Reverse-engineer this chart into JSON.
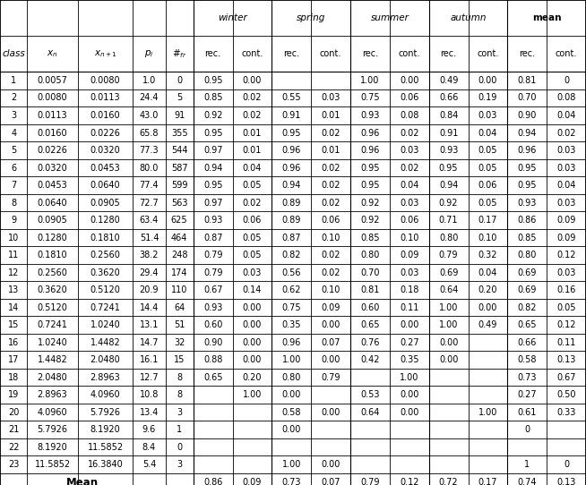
{
  "rows": [
    [
      "1",
      "0.0057",
      "0.0080",
      "1.0",
      "0",
      "0.95",
      "0.00",
      "",
      "",
      "1.00",
      "0.00",
      "0.49",
      "0.00",
      "0.81",
      "0"
    ],
    [
      "2",
      "0.0080",
      "0.0113",
      "24.4",
      "5",
      "0.85",
      "0.02",
      "0.55",
      "0.03",
      "0.75",
      "0.06",
      "0.66",
      "0.19",
      "0.70",
      "0.08"
    ],
    [
      "3",
      "0.0113",
      "0.0160",
      "43.0",
      "91",
      "0.92",
      "0.02",
      "0.91",
      "0.01",
      "0.93",
      "0.08",
      "0.84",
      "0.03",
      "0.90",
      "0.04"
    ],
    [
      "4",
      "0.0160",
      "0.0226",
      "65.8",
      "355",
      "0.95",
      "0.01",
      "0.95",
      "0.02",
      "0.96",
      "0.02",
      "0.91",
      "0.04",
      "0.94",
      "0.02"
    ],
    [
      "5",
      "0.0226",
      "0.0320",
      "77.3",
      "544",
      "0.97",
      "0.01",
      "0.96",
      "0.01",
      "0.96",
      "0.03",
      "0.93",
      "0.05",
      "0.96",
      "0.03"
    ],
    [
      "6",
      "0.0320",
      "0.0453",
      "80.0",
      "587",
      "0.94",
      "0.04",
      "0.96",
      "0.02",
      "0.95",
      "0.02",
      "0.95",
      "0.05",
      "0.95",
      "0.03"
    ],
    [
      "7",
      "0.0453",
      "0.0640",
      "77.4",
      "599",
      "0.95",
      "0.05",
      "0.94",
      "0.02",
      "0.95",
      "0.04",
      "0.94",
      "0.06",
      "0.95",
      "0.04"
    ],
    [
      "8",
      "0.0640",
      "0.0905",
      "72.7",
      "563",
      "0.97",
      "0.02",
      "0.89",
      "0.02",
      "0.92",
      "0.03",
      "0.92",
      "0.05",
      "0.93",
      "0.03"
    ],
    [
      "9",
      "0.0905",
      "0.1280",
      "63.4",
      "625",
      "0.93",
      "0.06",
      "0.89",
      "0.06",
      "0.92",
      "0.06",
      "0.71",
      "0.17",
      "0.86",
      "0.09"
    ],
    [
      "10",
      "0.1280",
      "0.1810",
      "51.4",
      "464",
      "0.87",
      "0.05",
      "0.87",
      "0.10",
      "0.85",
      "0.10",
      "0.80",
      "0.10",
      "0.85",
      "0.09"
    ],
    [
      "11",
      "0.1810",
      "0.2560",
      "38.2",
      "248",
      "0.79",
      "0.05",
      "0.82",
      "0.02",
      "0.80",
      "0.09",
      "0.79",
      "0.32",
      "0.80",
      "0.12"
    ],
    [
      "12",
      "0.2560",
      "0.3620",
      "29.4",
      "174",
      "0.79",
      "0.03",
      "0.56",
      "0.02",
      "0.70",
      "0.03",
      "0.69",
      "0.04",
      "0.69",
      "0.03"
    ],
    [
      "13",
      "0.3620",
      "0.5120",
      "20.9",
      "110",
      "0.67",
      "0.14",
      "0.62",
      "0.10",
      "0.81",
      "0.18",
      "0.64",
      "0.20",
      "0.69",
      "0.16"
    ],
    [
      "14",
      "0.5120",
      "0.7241",
      "14.4",
      "64",
      "0.93",
      "0.00",
      "0.75",
      "0.09",
      "0.60",
      "0.11",
      "1.00",
      "0.00",
      "0.82",
      "0.05"
    ],
    [
      "15",
      "0.7241",
      "1.0240",
      "13.1",
      "51",
      "0.60",
      "0.00",
      "0.35",
      "0.00",
      "0.65",
      "0.00",
      "1.00",
      "0.49",
      "0.65",
      "0.12"
    ],
    [
      "16",
      "1.0240",
      "1.4482",
      "14.7",
      "32",
      "0.90",
      "0.00",
      "0.96",
      "0.07",
      "0.76",
      "0.27",
      "0.00",
      "",
      "0.66",
      "0.11"
    ],
    [
      "17",
      "1.4482",
      "2.0480",
      "16.1",
      "15",
      "0.88",
      "0.00",
      "1.00",
      "0.00",
      "0.42",
      "0.35",
      "0.00",
      "",
      "0.58",
      "0.13"
    ],
    [
      "18",
      "2.0480",
      "2.8963",
      "12.7",
      "8",
      "0.65",
      "0.20",
      "0.80",
      "0.79",
      "",
      "1.00",
      "",
      "",
      "0.73",
      "0.67"
    ],
    [
      "19",
      "2.8963",
      "4.0960",
      "10.8",
      "8",
      "",
      "1.00",
      "0.00",
      "",
      "0.53",
      "0.00",
      "",
      "",
      "0.27",
      "0.50"
    ],
    [
      "20",
      "4.0960",
      "5.7926",
      "13.4",
      "3",
      "",
      "",
      "0.58",
      "0.00",
      "0.64",
      "0.00",
      "",
      "1.00",
      "0.61",
      "0.33"
    ],
    [
      "21",
      "5.7926",
      "8.1920",
      "9.6",
      "1",
      "",
      "",
      "0.00",
      "",
      "",
      "",
      "",
      "",
      "0",
      ""
    ],
    [
      "22",
      "8.1920",
      "11.5852",
      "8.4",
      "0",
      "",
      "",
      "",
      "",
      "",
      "",
      "",
      "",
      "",
      ""
    ],
    [
      "23",
      "11.5852",
      "16.3840",
      "5.4",
      "3",
      "",
      "",
      "1.00",
      "0.00",
      "",
      "",
      "",
      "",
      "1",
      "0"
    ]
  ],
  "mean_vals": [
    "0.86",
    "0.09",
    "0.73",
    "0.07",
    "0.79",
    "0.12",
    "0.72",
    "0.17",
    "0.74",
    "0.13"
  ],
  "season_labels": [
    "winter",
    "spring",
    "summer",
    "autumn",
    "mean"
  ],
  "season_bold": [
    false,
    false,
    false,
    false,
    true
  ],
  "col_labels": [
    "class",
    "x_n",
    "x_{n+1}",
    "p_i",
    "#_{fr}"
  ],
  "sub_labels": [
    "rec.",
    "cont.",
    "rec.",
    "cont.",
    "rec.",
    "cont.",
    "rec.",
    "cont.",
    "rec.",
    "cont."
  ],
  "font_size": 7.0,
  "header_font_size": 7.5,
  "mean_font_size": 8.5
}
